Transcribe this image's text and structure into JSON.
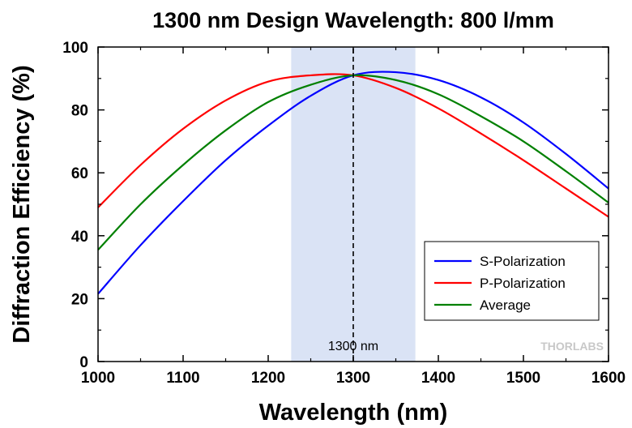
{
  "chart_data": {
    "type": "line",
    "title": "1300 nm Design Wavelength: 800 l/mm",
    "xlabel": "Wavelength (nm)",
    "ylabel": "Diffraction Efficiency (%)",
    "xlim": [
      1000,
      1600
    ],
    "ylim": [
      0,
      100
    ],
    "xticks": [
      1000,
      1100,
      1200,
      1300,
      1400,
      1500,
      1600
    ],
    "yticks": [
      0,
      20,
      40,
      60,
      80,
      100
    ],
    "grid": false,
    "legend_position": "lower-right",
    "shaded_band": {
      "x_range": [
        1227,
        1373
      ],
      "color": "#dae3f5"
    },
    "design_line": {
      "x": 1300,
      "label": "1300 nm",
      "style": "dashed"
    },
    "series": [
      {
        "name": "S-Polarization",
        "color": "#0000ff",
        "x": [
          1000,
          1050,
          1100,
          1150,
          1200,
          1250,
          1300,
          1350,
          1400,
          1450,
          1500,
          1550,
          1600
        ],
        "y": [
          21.5,
          37,
          51,
          64,
          75,
          84.5,
          91,
          92,
          89.5,
          84,
          76,
          66,
          55
        ]
      },
      {
        "name": "P-Polarization",
        "color": "#ff0000",
        "x": [
          1000,
          1050,
          1100,
          1150,
          1200,
          1250,
          1300,
          1350,
          1400,
          1450,
          1500,
          1550,
          1600
        ],
        "y": [
          49,
          62.5,
          74,
          83,
          89,
          91,
          91,
          87,
          80.5,
          72.5,
          64,
          55,
          46
        ]
      },
      {
        "name": "Average",
        "color": "#008000",
        "x": [
          1000,
          1050,
          1100,
          1150,
          1200,
          1250,
          1300,
          1350,
          1400,
          1450,
          1500,
          1550,
          1600
        ],
        "y": [
          35.5,
          50,
          62.5,
          73.5,
          82.5,
          88,
          91,
          89.5,
          85,
          78,
          70,
          60.5,
          50.5
        ]
      }
    ]
  },
  "logo": {
    "text": "THORLABS"
  }
}
